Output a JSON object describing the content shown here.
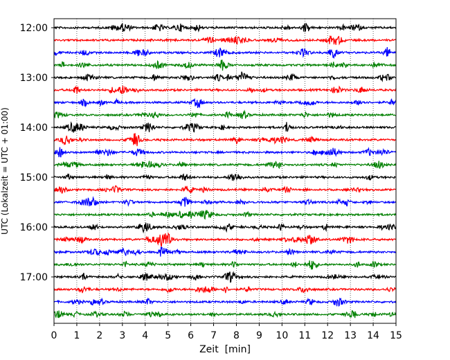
{
  "chart_data": {
    "type": "line",
    "subtype": "seismogram-helicorder",
    "title": "",
    "xlabel": "Zeit  [min]",
    "ylabel": "UTC (Lokalzeit = UTC + 01:00)",
    "xlim": [
      0,
      15
    ],
    "x_ticks": [
      0,
      1,
      2,
      3,
      4,
      5,
      6,
      7,
      8,
      9,
      10,
      11,
      12,
      13,
      14,
      15
    ],
    "x_tick_labels": [
      "0",
      "1",
      "2",
      "3",
      "4",
      "5",
      "6",
      "7",
      "8",
      "9",
      "10",
      "11",
      "12",
      "13",
      "14",
      "15"
    ],
    "grid": "vertical dotted at each x tick",
    "trace_interval_minutes": 15,
    "start_time": "12:00",
    "y_tick_labels": [
      "12:00",
      "13:00",
      "14:00",
      "15:00",
      "16:00",
      "17:00"
    ],
    "color_cycle": [
      "#000000",
      "#ff0000",
      "#0000ff",
      "#008000"
    ],
    "trace_start_times": [
      "12:00",
      "12:15",
      "12:30",
      "12:45",
      "13:00",
      "13:15",
      "13:30",
      "13:45",
      "14:00",
      "14:15",
      "14:30",
      "14:45",
      "15:00",
      "15:15",
      "15:30",
      "15:45",
      "16:00",
      "16:15",
      "16:30",
      "16:45",
      "17:00",
      "17:15",
      "17:30",
      "17:45"
    ]
  }
}
